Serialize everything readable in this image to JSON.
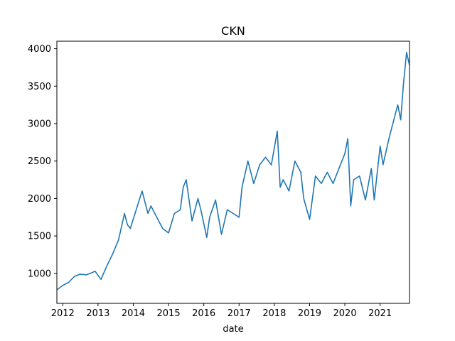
{
  "chart_data": {
    "type": "line",
    "title": "CKN",
    "xlabel": "date",
    "ylabel": "",
    "xlim": [
      "2011-11",
      "2021-11"
    ],
    "ylim": [
      600,
      4100
    ],
    "x_ticks": [
      "2012",
      "2013",
      "2014",
      "2015",
      "2016",
      "2017",
      "2018",
      "2019",
      "2020",
      "2021"
    ],
    "y_ticks": [
      1000,
      1500,
      2000,
      2500,
      3000,
      3500,
      4000
    ],
    "grid": false,
    "series_color": "#1f77b4",
    "series": [
      {
        "x": [
          "2011-11",
          "2012-01",
          "2012-03",
          "2012-05",
          "2012-07",
          "2012-09",
          "2012-11",
          "2012-12",
          "2013-02",
          "2013-04",
          "2013-06",
          "2013-08",
          "2013-10",
          "2013-11",
          "2013-12",
          "2014-02",
          "2014-04",
          "2014-06",
          "2014-07",
          "2014-09",
          "2014-11",
          "2015-01",
          "2015-03",
          "2015-05",
          "2015-06",
          "2015-07",
          "2015-09",
          "2015-11",
          "2015-12",
          "2016-02",
          "2016-03",
          "2016-05",
          "2016-07",
          "2016-09",
          "2016-11",
          "2017-01",
          "2017-02",
          "2017-04",
          "2017-06",
          "2017-08",
          "2017-10",
          "2017-12",
          "2018-02",
          "2018-03",
          "2018-04",
          "2018-06",
          "2018-08",
          "2018-10",
          "2018-11",
          "2019-01",
          "2019-03",
          "2019-05",
          "2019-07",
          "2019-09",
          "2019-11",
          "2020-01",
          "2020-02",
          "2020-03",
          "2020-04",
          "2020-06",
          "2020-08",
          "2020-10",
          "2020-11",
          "2021-01",
          "2021-02",
          "2021-04",
          "2021-06",
          "2021-07",
          "2021-08",
          "2021-09",
          "2021-10",
          "2021-11"
        ],
        "values": [
          780,
          840,
          880,
          960,
          990,
          980,
          1010,
          1030,
          920,
          1100,
          1260,
          1450,
          1800,
          1650,
          1600,
          1850,
          2100,
          1800,
          1900,
          1750,
          1600,
          1540,
          1800,
          1850,
          2150,
          2250,
          1700,
          2000,
          1850,
          1480,
          1750,
          1980,
          1520,
          1850,
          1800,
          1750,
          2150,
          2500,
          2200,
          2450,
          2550,
          2450,
          2900,
          2150,
          2250,
          2100,
          2500,
          2350,
          2000,
          1720,
          2300,
          2200,
          2350,
          2200,
          2400,
          2600,
          2800,
          1900,
          2250,
          2300,
          1980,
          2400,
          1980,
          2700,
          2450,
          2800,
          3100,
          3250,
          3050,
          3550,
          3950,
          3780
        ]
      }
    ]
  }
}
